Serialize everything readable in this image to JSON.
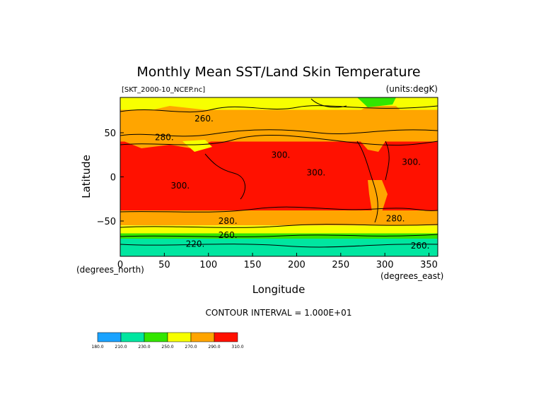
{
  "chart_data": {
    "type": "heatmap",
    "title": "Monthly Mean SST/Land Skin Temperature",
    "source_file": "[SKT_2000-10_NCEP.nc]",
    "units": "(units:degK)",
    "xlabel": "Longitude",
    "ylabel": "Latitude",
    "x_units": "(degrees_east)",
    "y_units": "(degrees_north)",
    "xlim": [
      0,
      360
    ],
    "ylim": [
      -90,
      90
    ],
    "x_ticks": [
      0,
      50,
      100,
      150,
      200,
      250,
      300,
      350
    ],
    "y_ticks": [
      50,
      0,
      -50
    ],
    "y_tick_labels": [
      "50",
      "0",
      "−50"
    ],
    "contour_interval_text": "CONTOUR INTERVAL = 1.000E+01",
    "contour_labels": [
      {
        "text": "260.",
        "lon": 95,
        "lat": 66
      },
      {
        "text": "280.",
        "lon": 50,
        "lat": 45
      },
      {
        "text": "300.",
        "lon": 182,
        "lat": 25
      },
      {
        "text": "300.",
        "lon": 222,
        "lat": 5
      },
      {
        "text": "300.",
        "lon": 68,
        "lat": -10
      },
      {
        "text": "300.",
        "lon": 330,
        "lat": 17
      },
      {
        "text": "280.",
        "lon": 122,
        "lat": -50
      },
      {
        "text": "280.",
        "lon": 312,
        "lat": -47
      },
      {
        "text": "260.",
        "lon": 122,
        "lat": -66
      },
      {
        "text": "220.",
        "lon": 85,
        "lat": -76
      },
      {
        "text": "260.",
        "lon": 340,
        "lat": -78
      }
    ],
    "colorbar": {
      "levels": [
        "180.0",
        "210.0",
        "230.0",
        "250.0",
        "270.0",
        "290.0",
        "310.0"
      ],
      "colors": [
        "#1aa3ff",
        "#00e6a0",
        "#33e600",
        "#f7ff00",
        "#ffa500",
        "#ff1100"
      ]
    },
    "bands": [
      {
        "lat_from": 90,
        "lat_to": 76,
        "color": "#f7ff00"
      },
      {
        "lat_from": 76,
        "lat_to": 52,
        "color": "#ffa500"
      },
      {
        "lat_from": 52,
        "lat_to": 40,
        "color": "#ffa500"
      },
      {
        "lat_from": 40,
        "lat_to": -38,
        "color": "#ff1100"
      },
      {
        "lat_from": -38,
        "lat_to": -55,
        "color": "#ffa500"
      },
      {
        "lat_from": -55,
        "lat_to": -64,
        "color": "#f7ff00"
      },
      {
        "lat_from": -64,
        "lat_to": -70,
        "color": "#33e600"
      },
      {
        "lat_from": -70,
        "lat_to": -90,
        "color": "#00e6a0"
      }
    ]
  }
}
